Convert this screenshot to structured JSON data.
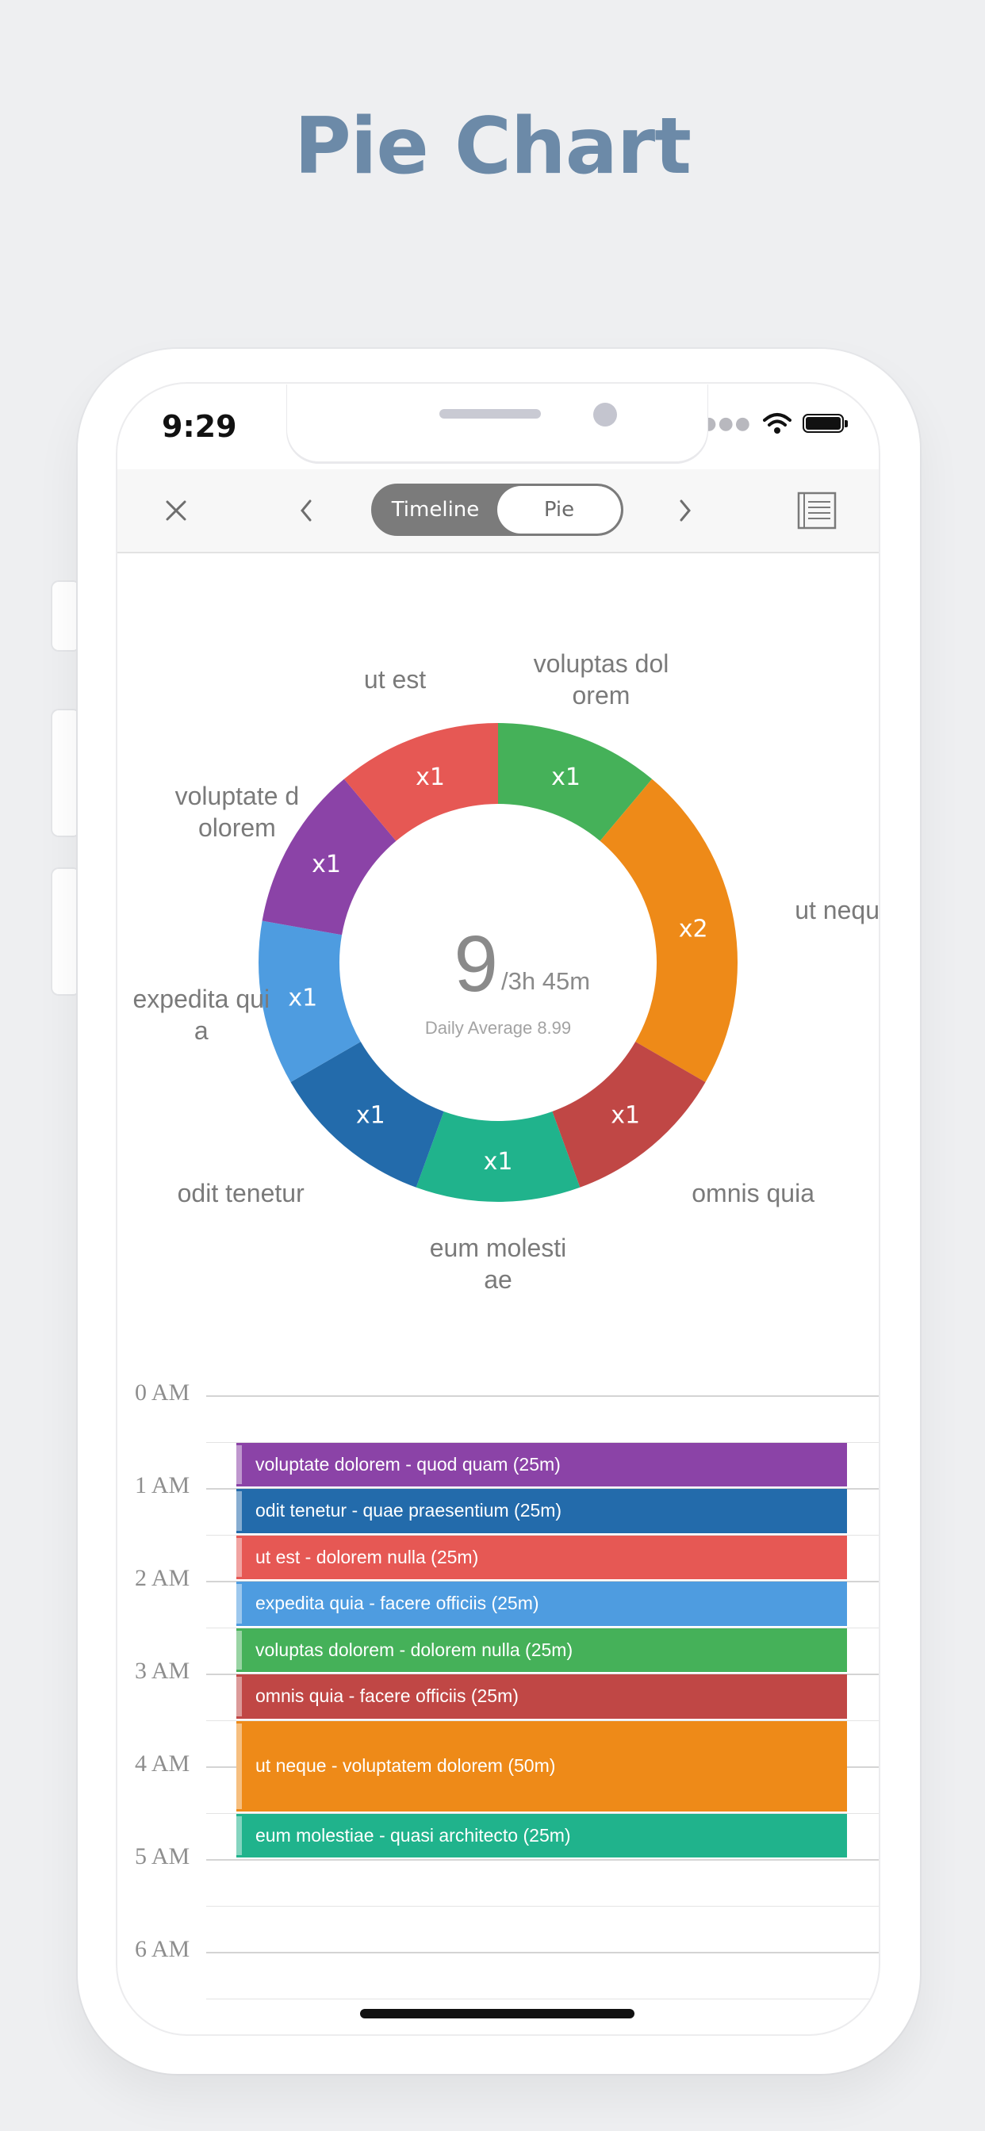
{
  "hero": {
    "title": "Pie Chart"
  },
  "status_bar": {
    "time": "9:29"
  },
  "toolbar": {
    "close_icon": "close-icon",
    "prev_icon": "chevron-left-icon",
    "next_icon": "chevron-right-icon",
    "list_icon": "list-icon",
    "tabs": [
      "Timeline",
      "Pie"
    ],
    "selected_tab": "Pie"
  },
  "summary": {
    "count": "9",
    "duration": "/3h 45m",
    "daily_average": "Daily Average 8.99"
  },
  "chart_data": {
    "type": "pie",
    "style": "donut",
    "slices": [
      {
        "name": "voluptas dolorem",
        "label": "voluptas dol orem",
        "value": 1,
        "value_label": "x1",
        "color": "#45b159"
      },
      {
        "name": "ut neque",
        "label": "ut neque",
        "value": 2,
        "value_label": "x2",
        "color": "#ee8a18"
      },
      {
        "name": "omnis quia",
        "label": "omnis quia",
        "value": 1,
        "value_label": "x1",
        "color": "#c04745"
      },
      {
        "name": "eum molestiae",
        "label": "eum molesti ae",
        "value": 1,
        "value_label": "x1",
        "color": "#20b38c"
      },
      {
        "name": "odit tenetur",
        "label": "odit tenetur",
        "value": 1,
        "value_label": "x1",
        "color": "#236bab"
      },
      {
        "name": "expedita quia",
        "label": "expedita qui a",
        "value": 1,
        "value_label": "x1",
        "color": "#4e9ce0"
      },
      {
        "name": "voluptate dolorem",
        "label": "voluptate d olorem",
        "value": 1,
        "value_label": "x1",
        "color": "#8b43a7"
      },
      {
        "name": "ut est",
        "label": "ut est",
        "value": 1,
        "value_label": "x1",
        "color": "#e65854"
      }
    ]
  },
  "timeline": {
    "hours": [
      "0 AM",
      "1 AM",
      "2 AM",
      "3 AM",
      "4 AM",
      "5 AM",
      "6 AM"
    ],
    "events": [
      {
        "label": "voluptate dolorem - quod quam (25m)",
        "color": "#8b43a7",
        "slots": 1
      },
      {
        "label": "odit tenetur - quae praesentium (25m)",
        "color": "#236bab",
        "slots": 1
      },
      {
        "label": "ut est - dolorem nulla (25m)",
        "color": "#e65854",
        "slots": 1
      },
      {
        "label": "expedita quia - facere officiis (25m)",
        "color": "#4e9ce0",
        "slots": 1
      },
      {
        "label": "voluptas dolorem - dolorem nulla (25m)",
        "color": "#45b159",
        "slots": 1
      },
      {
        "label": "omnis quia - facere officiis (25m)",
        "color": "#c04745",
        "slots": 1
      },
      {
        "label": "ut neque - voluptatem dolorem (50m)",
        "color": "#ee8a18",
        "slots": 2
      },
      {
        "label": "eum molestiae - quasi architecto (25m)",
        "color": "#20b38c",
        "slots": 1
      }
    ]
  }
}
